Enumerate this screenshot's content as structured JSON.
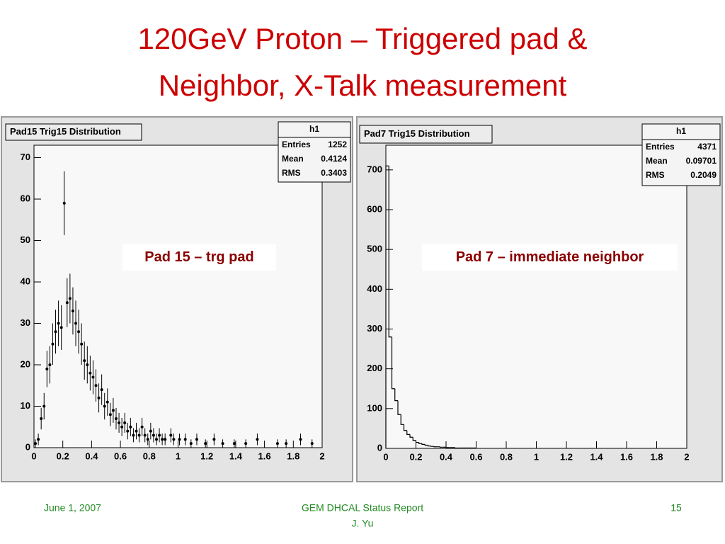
{
  "title_lines": [
    "120GeV Proton – Triggered pad &",
    "Neighbor, X-Talk measurement"
  ],
  "footer": {
    "date": "June 1, 2007",
    "report": "GEM DHCAL Status Report",
    "author": "J. Yu",
    "page": "15"
  },
  "chart_data": [
    {
      "type": "errorbar",
      "title": "Pad15 Trig15 Distribution",
      "annotation": "Pad 15 – trg pad",
      "color": "#000000",
      "stats": {
        "name": "h1",
        "rows": [
          {
            "label": "Entries",
            "value": 1252
          },
          {
            "label": "Mean",
            "value": 0.4124
          },
          {
            "label": "RMS",
            "value": 0.3403
          }
        ]
      },
      "x": [
        0.01,
        0.03,
        0.05,
        0.07,
        0.09,
        0.11,
        0.13,
        0.15,
        0.17,
        0.19,
        0.21,
        0.23,
        0.25,
        0.27,
        0.29,
        0.31,
        0.33,
        0.35,
        0.37,
        0.39,
        0.41,
        0.43,
        0.45,
        0.47,
        0.49,
        0.51,
        0.53,
        0.55,
        0.57,
        0.59,
        0.61,
        0.63,
        0.65,
        0.67,
        0.69,
        0.71,
        0.73,
        0.75,
        0.77,
        0.79,
        0.81,
        0.83,
        0.85,
        0.87,
        0.89,
        0.91,
        0.95,
        0.97,
        1.01,
        1.05,
        1.09,
        1.13,
        1.19,
        1.25,
        1.31,
        1.39,
        1.47,
        1.55,
        1.69,
        1.75,
        1.85,
        1.93
      ],
      "values": [
        1,
        2,
        7,
        10,
        19,
        20,
        25,
        28,
        30,
        29,
        59,
        35,
        36,
        33,
        30,
        28,
        25,
        21,
        20,
        18,
        17,
        15,
        12,
        14,
        10,
        11,
        8,
        9,
        7,
        6,
        5,
        6,
        4,
        5,
        3,
        4,
        3,
        5,
        3,
        2,
        4,
        3,
        2,
        3,
        2,
        2,
        3,
        2,
        2,
        2,
        1,
        2,
        1,
        2,
        1,
        1,
        1,
        2,
        1,
        1,
        2,
        1
      ],
      "errors": [
        1,
        1.4,
        2.6,
        3.2,
        4.4,
        4.5,
        5,
        5.3,
        5.5,
        5.4,
        7.7,
        5.9,
        6,
        5.7,
        5.5,
        5.3,
        5,
        4.6,
        4.5,
        4.2,
        4.1,
        3.9,
        3.5,
        3.7,
        3.2,
        3.3,
        2.8,
        3,
        2.6,
        2.4,
        2.2,
        2.4,
        2,
        2.2,
        1.7,
        2,
        1.7,
        2.2,
        1.7,
        1.4,
        2,
        1.7,
        1.4,
        1.7,
        1.4,
        1.4,
        1.7,
        1.4,
        1.4,
        1.4,
        1,
        1.4,
        1,
        1.4,
        1,
        1,
        1,
        1.4,
        1,
        1,
        1.4,
        1
      ],
      "xlim": [
        0,
        2
      ],
      "ylim": [
        0,
        73
      ],
      "xticks": [
        0,
        0.2,
        0.4,
        0.6,
        0.8,
        1,
        1.2,
        1.4,
        1.6,
        1.8,
        2
      ],
      "yticks": [
        0,
        10,
        20,
        30,
        40,
        50,
        60,
        70
      ]
    },
    {
      "type": "histogram",
      "title": "Pad7 Trig15 Distribution",
      "annotation": "Pad 7 – immediate neighbor",
      "color": "#000000",
      "stats": {
        "name": "h1",
        "rows": [
          {
            "label": "Entries",
            "value": 4371
          },
          {
            "label": "Mean",
            "value": 0.09701
          },
          {
            "label": "RMS",
            "value": 0.2049
          }
        ]
      },
      "bins": [
        0,
        0.02,
        0.04,
        0.06,
        0.08,
        0.1,
        0.12,
        0.14,
        0.16,
        0.18,
        0.2,
        0.22,
        0.24,
        0.26,
        0.28,
        0.3,
        0.32,
        0.34,
        0.36,
        0.38,
        0.4,
        0.42,
        0.44,
        0.46,
        0.48,
        0.5,
        0.52,
        0.54,
        0.56,
        0.58,
        0.6
      ],
      "values": [
        710,
        280,
        150,
        120,
        85,
        60,
        45,
        35,
        28,
        20,
        15,
        12,
        10,
        8,
        6,
        5,
        4,
        4,
        3,
        3,
        2,
        2,
        2,
        1,
        1,
        1,
        1,
        1,
        1,
        1
      ],
      "xlim": [
        0,
        2
      ],
      "ylim": [
        0,
        762
      ],
      "xticks": [
        0,
        0.2,
        0.4,
        0.6,
        0.8,
        1,
        1.2,
        1.4,
        1.6,
        1.8,
        2
      ],
      "yticks": [
        0,
        100,
        200,
        300,
        400,
        500,
        600,
        700
      ]
    }
  ]
}
